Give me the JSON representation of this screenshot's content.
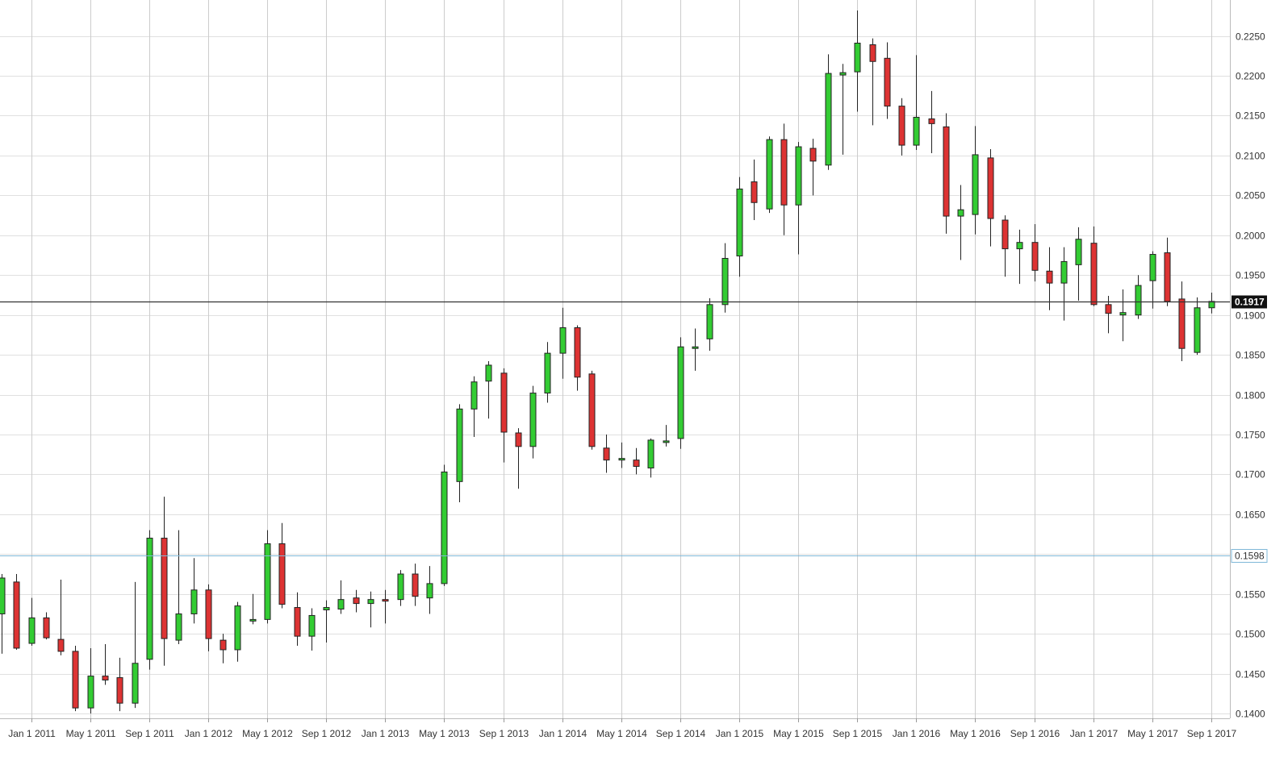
{
  "chart_data": {
    "type": "candlestick",
    "title": "",
    "xlabel": "",
    "ylabel": "",
    "ylim": [
      0.1395,
      0.2285
    ],
    "y_ticks": [
      "0.1400",
      "0.1450",
      "0.1500",
      "0.1550",
      "0.1600",
      "0.1650",
      "0.1700",
      "0.1750",
      "0.1800",
      "0.1850",
      "0.1900",
      "0.1950",
      "0.2000",
      "0.2050",
      "0.2100",
      "0.2150",
      "0.2200",
      "0.2250"
    ],
    "x_ticks": [
      {
        "label": "Jan 1 2011",
        "index": 2
      },
      {
        "label": "May 1 2011",
        "index": 6
      },
      {
        "label": "Sep 1 2011",
        "index": 10
      },
      {
        "label": "Jan 1 2012",
        "index": 14
      },
      {
        "label": "May 1 2012",
        "index": 18
      },
      {
        "label": "Sep 1 2012",
        "index": 22
      },
      {
        "label": "Jan 1 2013",
        "index": 26
      },
      {
        "label": "May 1 2013",
        "index": 30
      },
      {
        "label": "Sep 1 2013",
        "index": 34
      },
      {
        "label": "Jan 1 2014",
        "index": 38
      },
      {
        "label": "May 1 2014",
        "index": 42
      },
      {
        "label": "Sep 1 2014",
        "index": 46
      },
      {
        "label": "Jan 1 2015",
        "index": 50
      },
      {
        "label": "May 1 2015",
        "index": 54
      },
      {
        "label": "Sep 1 2015",
        "index": 58
      },
      {
        "label": "Jan 1 2016",
        "index": 62
      },
      {
        "label": "May 1 2016",
        "index": 66
      },
      {
        "label": "Sep 1 2016",
        "index": 70
      },
      {
        "label": "Jan 1 2017",
        "index": 74
      },
      {
        "label": "May 1 2017",
        "index": 78
      },
      {
        "label": "Sep 1 2017",
        "index": 82
      }
    ],
    "current_price": {
      "label": "0.1917",
      "value": 0.1917
    },
    "reference_level": {
      "label": "0.1598",
      "value": 0.1598
    },
    "colors": {
      "up": "#33cc33",
      "down": "#dd3333",
      "grid": "#e0e0e0",
      "vgrid": "#cccccc",
      "current_line": "#333333",
      "reference_line": "#7fb8d8"
    },
    "candles": [
      {
        "o": 0.1525,
        "h": 0.1575,
        "l": 0.1475,
        "c": 0.157
      },
      {
        "o": 0.1565,
        "h": 0.1575,
        "l": 0.148,
        "c": 0.1482
      },
      {
        "o": 0.1488,
        "h": 0.1545,
        "l": 0.1485,
        "c": 0.152
      },
      {
        "o": 0.152,
        "h": 0.1527,
        "l": 0.1493,
        "c": 0.1495
      },
      {
        "o": 0.1493,
        "h": 0.1568,
        "l": 0.1473,
        "c": 0.1478
      },
      {
        "o": 0.1478,
        "h": 0.1485,
        "l": 0.1403,
        "c": 0.1407
      },
      {
        "o": 0.1407,
        "h": 0.1482,
        "l": 0.14,
        "c": 0.1447
      },
      {
        "o": 0.1447,
        "h": 0.1487,
        "l": 0.1436,
        "c": 0.1442
      },
      {
        "o": 0.1445,
        "h": 0.147,
        "l": 0.1403,
        "c": 0.1413
      },
      {
        "o": 0.1413,
        "h": 0.1565,
        "l": 0.1407,
        "c": 0.1463
      },
      {
        "o": 0.1468,
        "h": 0.163,
        "l": 0.1455,
        "c": 0.162
      },
      {
        "o": 0.162,
        "h": 0.1672,
        "l": 0.146,
        "c": 0.1494
      },
      {
        "o": 0.1492,
        "h": 0.163,
        "l": 0.1487,
        "c": 0.1525
      },
      {
        "o": 0.1525,
        "h": 0.1595,
        "l": 0.1513,
        "c": 0.1555
      },
      {
        "o": 0.1555,
        "h": 0.1562,
        "l": 0.1478,
        "c": 0.1494
      },
      {
        "o": 0.1492,
        "h": 0.15,
        "l": 0.1463,
        "c": 0.148
      },
      {
        "o": 0.148,
        "h": 0.154,
        "l": 0.1465,
        "c": 0.1535
      },
      {
        "o": 0.1518,
        "h": 0.155,
        "l": 0.1512,
        "c": 0.1518
      },
      {
        "o": 0.1518,
        "h": 0.163,
        "l": 0.1513,
        "c": 0.1613
      },
      {
        "o": 0.1613,
        "h": 0.1639,
        "l": 0.1532,
        "c": 0.1537
      },
      {
        "o": 0.1533,
        "h": 0.1552,
        "l": 0.1485,
        "c": 0.1497
      },
      {
        "o": 0.1497,
        "h": 0.1532,
        "l": 0.1479,
        "c": 0.1523
      },
      {
        "o": 0.153,
        "h": 0.1542,
        "l": 0.1489,
        "c": 0.1533
      },
      {
        "o": 0.1531,
        "h": 0.1567,
        "l": 0.1525,
        "c": 0.1543
      },
      {
        "o": 0.1545,
        "h": 0.1555,
        "l": 0.1527,
        "c": 0.1538
      },
      {
        "o": 0.1538,
        "h": 0.1553,
        "l": 0.1508,
        "c": 0.1543
      },
      {
        "o": 0.1543,
        "h": 0.1555,
        "l": 0.1513,
        "c": 0.1542
      },
      {
        "o": 0.1543,
        "h": 0.158,
        "l": 0.1535,
        "c": 0.1575
      },
      {
        "o": 0.1575,
        "h": 0.1588,
        "l": 0.1535,
        "c": 0.1547
      },
      {
        "o": 0.1545,
        "h": 0.1585,
        "l": 0.1525,
        "c": 0.1563
      },
      {
        "o": 0.1563,
        "h": 0.1712,
        "l": 0.156,
        "c": 0.1703
      },
      {
        "o": 0.1691,
        "h": 0.1788,
        "l": 0.1665,
        "c": 0.1782
      },
      {
        "o": 0.1782,
        "h": 0.1823,
        "l": 0.1747,
        "c": 0.1816
      },
      {
        "o": 0.1817,
        "h": 0.1842,
        "l": 0.177,
        "c": 0.1837
      },
      {
        "o": 0.1827,
        "h": 0.1833,
        "l": 0.1715,
        "c": 0.1753
      },
      {
        "o": 0.1752,
        "h": 0.1758,
        "l": 0.1682,
        "c": 0.1735
      },
      {
        "o": 0.1735,
        "h": 0.1811,
        "l": 0.172,
        "c": 0.1802
      },
      {
        "o": 0.1802,
        "h": 0.1866,
        "l": 0.179,
        "c": 0.1852
      },
      {
        "o": 0.1852,
        "h": 0.1909,
        "l": 0.182,
        "c": 0.1884
      },
      {
        "o": 0.1884,
        "h": 0.1887,
        "l": 0.1805,
        "c": 0.1822
      },
      {
        "o": 0.1826,
        "h": 0.183,
        "l": 0.1731,
        "c": 0.1735
      },
      {
        "o": 0.1733,
        "h": 0.175,
        "l": 0.1702,
        "c": 0.1718
      },
      {
        "o": 0.172,
        "h": 0.174,
        "l": 0.1708,
        "c": 0.172
      },
      {
        "o": 0.1718,
        "h": 0.1733,
        "l": 0.17,
        "c": 0.171
      },
      {
        "o": 0.1708,
        "h": 0.1745,
        "l": 0.1696,
        "c": 0.1743
      },
      {
        "o": 0.1741,
        "h": 0.1762,
        "l": 0.1735,
        "c": 0.1742
      },
      {
        "o": 0.1745,
        "h": 0.1872,
        "l": 0.1732,
        "c": 0.186
      },
      {
        "o": 0.186,
        "h": 0.1883,
        "l": 0.183,
        "c": 0.186
      },
      {
        "o": 0.187,
        "h": 0.1921,
        "l": 0.1855,
        "c": 0.1913
      },
      {
        "o": 0.1913,
        "h": 0.199,
        "l": 0.1903,
        "c": 0.1971
      },
      {
        "o": 0.1974,
        "h": 0.2073,
        "l": 0.1948,
        "c": 0.2058
      },
      {
        "o": 0.2067,
        "h": 0.2095,
        "l": 0.2019,
        "c": 0.2041
      },
      {
        "o": 0.2033,
        "h": 0.2124,
        "l": 0.2028,
        "c": 0.212
      },
      {
        "o": 0.212,
        "h": 0.214,
        "l": 0.2,
        "c": 0.2038
      },
      {
        "o": 0.2038,
        "h": 0.2117,
        "l": 0.1976,
        "c": 0.2111
      },
      {
        "o": 0.2109,
        "h": 0.2121,
        "l": 0.205,
        "c": 0.2093
      },
      {
        "o": 0.2088,
        "h": 0.2227,
        "l": 0.2082,
        "c": 0.2203
      },
      {
        "o": 0.2201,
        "h": 0.2215,
        "l": 0.2101,
        "c": 0.2204
      },
      {
        "o": 0.2205,
        "h": 0.2282,
        "l": 0.2155,
        "c": 0.2241
      },
      {
        "o": 0.2239,
        "h": 0.2247,
        "l": 0.2138,
        "c": 0.2218
      },
      {
        "o": 0.2222,
        "h": 0.2242,
        "l": 0.2146,
        "c": 0.2162
      },
      {
        "o": 0.2162,
        "h": 0.2172,
        "l": 0.21,
        "c": 0.2113
      },
      {
        "o": 0.2113,
        "h": 0.2226,
        "l": 0.2107,
        "c": 0.2148
      },
      {
        "o": 0.2146,
        "h": 0.2181,
        "l": 0.2103,
        "c": 0.214
      },
      {
        "o": 0.2136,
        "h": 0.2153,
        "l": 0.2002,
        "c": 0.2024
      },
      {
        "o": 0.2024,
        "h": 0.2063,
        "l": 0.1969,
        "c": 0.2032
      },
      {
        "o": 0.2026,
        "h": 0.2137,
        "l": 0.2001,
        "c": 0.2101
      },
      {
        "o": 0.2097,
        "h": 0.2108,
        "l": 0.1986,
        "c": 0.2021
      },
      {
        "o": 0.2019,
        "h": 0.2025,
        "l": 0.1948,
        "c": 0.1983
      },
      {
        "o": 0.1983,
        "h": 0.2007,
        "l": 0.1939,
        "c": 0.1991
      },
      {
        "o": 0.1991,
        "h": 0.2014,
        "l": 0.1942,
        "c": 0.1956
      },
      {
        "o": 0.1955,
        "h": 0.1985,
        "l": 0.1906,
        "c": 0.194
      },
      {
        "o": 0.194,
        "h": 0.1985,
        "l": 0.1893,
        "c": 0.1967
      },
      {
        "o": 0.1963,
        "h": 0.201,
        "l": 0.1918,
        "c": 0.1995
      },
      {
        "o": 0.199,
        "h": 0.2011,
        "l": 0.1911,
        "c": 0.1913
      },
      {
        "o": 0.1913,
        "h": 0.1924,
        "l": 0.1877,
        "c": 0.1902
      },
      {
        "o": 0.19,
        "h": 0.1932,
        "l": 0.1867,
        "c": 0.1903
      },
      {
        "o": 0.19,
        "h": 0.195,
        "l": 0.1895,
        "c": 0.1937
      },
      {
        "o": 0.1943,
        "h": 0.198,
        "l": 0.1908,
        "c": 0.1976
      },
      {
        "o": 0.1978,
        "h": 0.1997,
        "l": 0.1911,
        "c": 0.1917
      },
      {
        "o": 0.192,
        "h": 0.1942,
        "l": 0.1842,
        "c": 0.1858
      },
      {
        "o": 0.1853,
        "h": 0.1922,
        "l": 0.185,
        "c": 0.1909
      },
      {
        "o": 0.1909,
        "h": 0.1928,
        "l": 0.1902,
        "c": 0.1917
      }
    ]
  }
}
